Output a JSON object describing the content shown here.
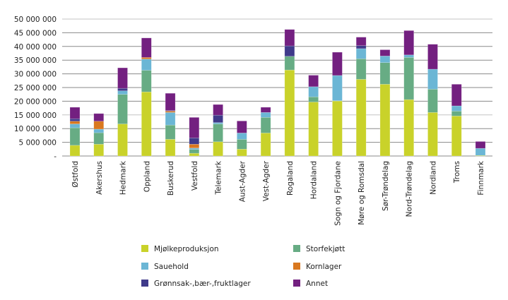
{
  "chart_data": {
    "type": "bar",
    "stacked": true,
    "ylim": [
      0,
      50000000
    ],
    "yticks": [
      0,
      5000000,
      10000000,
      15000000,
      20000000,
      25000000,
      30000000,
      35000000,
      40000000,
      45000000,
      50000000
    ],
    "ytick_labels": [
      "-",
      "5 000 000",
      "10 000 000",
      "15 000 000",
      "20 000 000",
      "25 000 000",
      "30 000 000",
      "35 000 000",
      "40 000 000",
      "45 000 000",
      "50 000 000"
    ],
    "grid": true,
    "legend_position": "bottom",
    "categories": [
      "Østfold",
      "Akershus",
      "Hedmark",
      "Oppland",
      "Buskerud",
      "Vestfold",
      "Telemark",
      "Aust-Agder",
      "Vest-Agder",
      "Rogaland",
      "Hordaland",
      "Sogn og Fjordane",
      "Møre og Romsdal",
      "Sør-Trøndelag",
      "Nord-Trøndelag",
      "Nordland",
      "Troms",
      "Finnmark"
    ],
    "series": [
      {
        "name": "Mjølkeproduksjon",
        "color": "#c9d22a",
        "values": [
          3900000,
          4300000,
          11700000,
          23400000,
          6100000,
          1000000,
          5200000,
          2500000,
          8400000,
          31400000,
          19700000,
          20100000,
          28000000,
          26200000,
          20600000,
          15900000,
          14600000,
          200000
        ]
      },
      {
        "name": "Storfekjøtt",
        "color": "#67ac84",
        "values": [
          6400000,
          4200000,
          10800000,
          7900000,
          5200000,
          1400000,
          6500000,
          3600000,
          5700000,
          5000000,
          1900000,
          100000,
          7500000,
          7900000,
          15400000,
          8500000,
          1800000,
          0
        ]
      },
      {
        "name": "Sauehold",
        "color": "#6bb6d5",
        "values": [
          1400000,
          1300000,
          1300000,
          4100000,
          4600000,
          500000,
          500000,
          2300000,
          1800000,
          0,
          3700000,
          9200000,
          3700000,
          2400000,
          900000,
          7300000,
          1900000,
          2600000
        ]
      },
      {
        "name": "Kornlager",
        "color": "#d9781f",
        "values": [
          1000000,
          2900000,
          0,
          600000,
          500000,
          1400000,
          0,
          0,
          0,
          0,
          0,
          0,
          0,
          0,
          0,
          0,
          0,
          0
        ]
      },
      {
        "name": "Grønnsak-,bær-,fruktlager",
        "color": "#3f3a8a",
        "values": [
          900000,
          0,
          900000,
          0,
          200000,
          2300000,
          2700000,
          0,
          0,
          3800000,
          0,
          0,
          1100000,
          0,
          0,
          0,
          0,
          0
        ]
      },
      {
        "name": "Annet",
        "color": "#732080",
        "values": [
          4200000,
          2800000,
          7500000,
          7100000,
          6300000,
          7500000,
          3900000,
          4400000,
          1900000,
          6000000,
          4200000,
          8500000,
          3100000,
          2300000,
          8900000,
          9100000,
          7900000,
          2500000
        ]
      }
    ]
  }
}
